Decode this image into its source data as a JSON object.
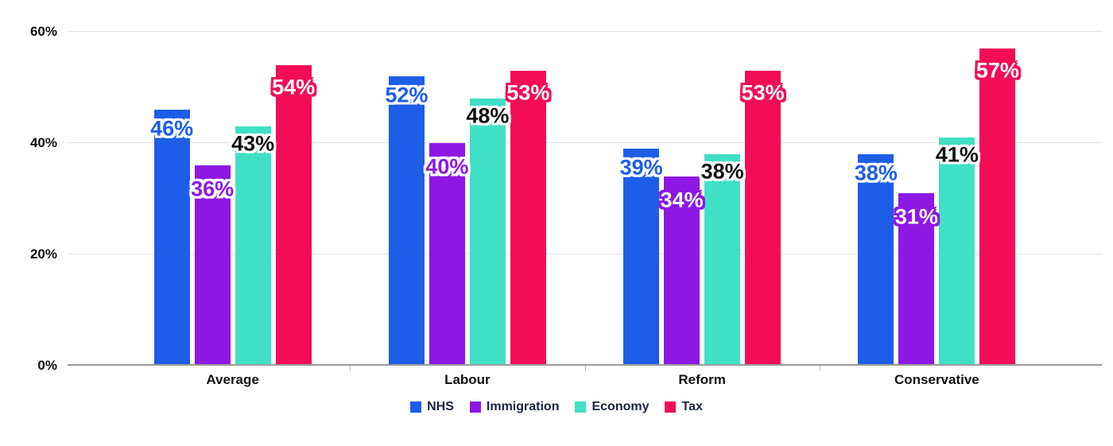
{
  "chart_data": {
    "type": "bar",
    "title": "",
    "categories": [
      "Average",
      "Labour",
      "Reform",
      "Conservative"
    ],
    "series": [
      {
        "name": "NHS",
        "color": "#1d5de8",
        "values": [
          46,
          52,
          39,
          38
        ],
        "labels": [
          "46%",
          "52%",
          "39%",
          "38%"
        ],
        "label_fill": [
          "#1d5de8",
          "#1d5de8",
          "#1d5de8",
          "#1d5de8"
        ],
        "label_stroke": [
          "#ffffff",
          "#ffffff",
          "#ffffff",
          "#ffffff"
        ]
      },
      {
        "name": "Immigration",
        "color": "#8e17e4",
        "values": [
          36,
          40,
          34,
          31
        ],
        "labels": [
          "36%",
          "40%",
          "34%",
          "31%"
        ],
        "label_fill": [
          "#8e17e4",
          "#8e17e4",
          "#ffffff",
          "#ffffff"
        ],
        "label_stroke": [
          "#ffffff",
          "#ffffff",
          "#8e17e4",
          "#8e17e4"
        ]
      },
      {
        "name": "Economy",
        "color": "#40e0c4",
        "values": [
          43,
          48,
          38,
          41
        ],
        "labels": [
          "43%",
          "48%",
          "38%",
          "41%"
        ],
        "label_fill": [
          "#111111",
          "#111111",
          "#111111",
          "#111111"
        ],
        "label_stroke": [
          "#ffffff",
          "#ffffff",
          "#ffffff",
          "#ffffff"
        ]
      },
      {
        "name": "Tax",
        "color": "#f20d56",
        "values": [
          54,
          53,
          53,
          57
        ],
        "labels": [
          "54%",
          "53%",
          "53%",
          "57%"
        ],
        "label_fill": [
          "#ffffff",
          "#ffffff",
          "#ffffff",
          "#ffffff"
        ],
        "label_stroke": [
          "#f20d56",
          "#f20d56",
          "#f20d56",
          "#f20d56"
        ]
      }
    ],
    "ylim": [
      0,
      60
    ],
    "yticks": [
      0,
      20,
      40,
      60
    ],
    "ytick_labels": [
      "0%",
      "20%",
      "40%",
      "60%"
    ],
    "grid": true,
    "legend_position": "bottom",
    "legend": [
      "NHS",
      "Immigration",
      "Economy",
      "Tax"
    ]
  },
  "style_colors": {
    "background": "#ffffff",
    "gridline": "#e3e3e3",
    "axis_line": "#9a9a9a",
    "axis_tick": "#bdbdbd",
    "category_text": "#111111",
    "ytick_text": "#111111",
    "legend_text": "#1b2440"
  }
}
